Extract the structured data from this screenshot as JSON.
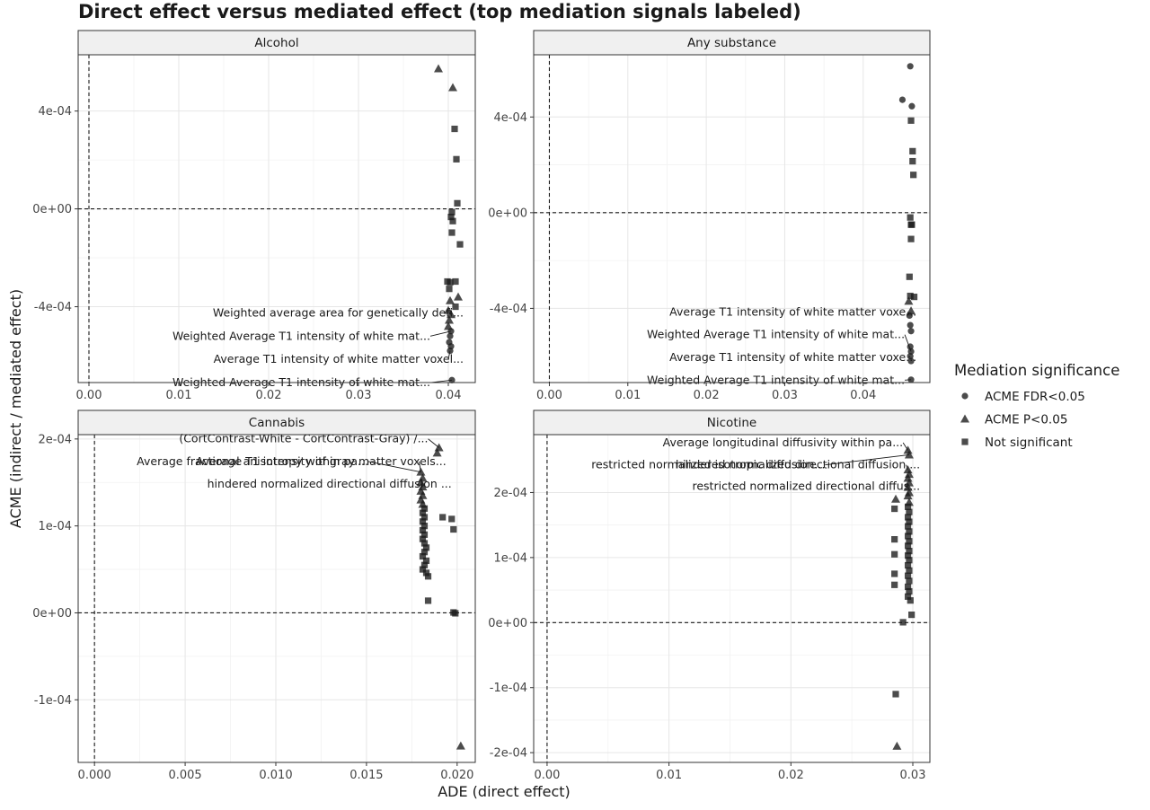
{
  "chart_data": {
    "type": "scatter",
    "title": "Direct effect versus mediated effect (top mediation signals labeled)",
    "xlabel": "ADE (direct effect)",
    "ylabel": "ACME (indirect / mediated effect)",
    "legend": {
      "title": "Mediation significance",
      "position": "right",
      "entries": [
        {
          "label": "ACME FDR<0.05",
          "shape": "circle"
        },
        {
          "label": "ACME P<0.05",
          "shape": "triangle"
        },
        {
          "label": "Not significant",
          "shape": "square"
        }
      ]
    },
    "grid": true,
    "point_color": "#1a1a1a",
    "reference_lines": {
      "x": 0,
      "y": 0,
      "style": "dashed"
    },
    "panels": [
      {
        "name": "Alcohol",
        "xlim": [
          -0.0012,
          0.043
        ],
        "ylim": [
          -0.00071,
          0.00063
        ],
        "xticks": [
          0,
          0.01,
          0.02,
          0.03,
          0.04
        ],
        "xtick_labels": [
          "0.00",
          "0.01",
          "0.02",
          "0.03",
          "0.04"
        ],
        "yticks": [
          -0.0004,
          0,
          0.0004
        ],
        "ytick_labels": [
          "-4e-04",
          "0e+00",
          "4e-04"
        ],
        "points": [
          {
            "x": 0.0389,
            "y": 0.000573,
            "sig": "triangle"
          },
          {
            "x": 0.0405,
            "y": 0.000496,
            "sig": "triangle"
          },
          {
            "x": 0.0407,
            "y": 0.000327,
            "sig": "square"
          },
          {
            "x": 0.0409,
            "y": 0.000203,
            "sig": "square"
          },
          {
            "x": 0.041,
            "y": 2.3e-05,
            "sig": "square"
          },
          {
            "x": 0.0404,
            "y": -1.3e-05,
            "sig": "square"
          },
          {
            "x": 0.0403,
            "y": -3.3e-05,
            "sig": "square"
          },
          {
            "x": 0.0405,
            "y": -5e-05,
            "sig": "square"
          },
          {
            "x": 0.0404,
            "y": -9.7e-05,
            "sig": "square"
          },
          {
            "x": 0.0413,
            "y": -0.000145,
            "sig": "square"
          },
          {
            "x": 0.0399,
            "y": -0.000297,
            "sig": "square"
          },
          {
            "x": 0.0402,
            "y": -0.0003,
            "sig": "square"
          },
          {
            "x": 0.0408,
            "y": -0.000297,
            "sig": "square"
          },
          {
            "x": 0.0401,
            "y": -0.000327,
            "sig": "square"
          },
          {
            "x": 0.0411,
            "y": -0.00036,
            "sig": "triangle"
          },
          {
            "x": 0.0402,
            "y": -0.000375,
            "sig": "triangle"
          },
          {
            "x": 0.0408,
            "y": -0.0004,
            "sig": "square"
          },
          {
            "x": 0.04,
            "y": -0.000415,
            "sig": "triangle"
          },
          {
            "x": 0.0403,
            "y": -0.000432,
            "sig": "triangle"
          },
          {
            "x": 0.0401,
            "y": -0.000455,
            "sig": "triangle"
          },
          {
            "x": 0.04,
            "y": -0.00048,
            "sig": "triangle"
          },
          {
            "x": 0.0403,
            "y": -0.0005,
            "sig": "circle"
          },
          {
            "x": 0.0402,
            "y": -0.00052,
            "sig": "circle"
          },
          {
            "x": 0.0401,
            "y": -0.000545,
            "sig": "circle"
          },
          {
            "x": 0.0403,
            "y": -0.000562,
            "sig": "circle"
          },
          {
            "x": 0.0402,
            "y": -0.00058,
            "sig": "circle"
          },
          {
            "x": 0.0404,
            "y": -0.0007,
            "sig": "circle"
          }
        ],
        "annotations": [
          {
            "text": "Weighted average area for genetically defi...",
            "x": 0.0403,
            "y": -0.000432,
            "label_y": -0.00044,
            "label_x_end": 0.0417
          },
          {
            "text": "Weighted Average T1 intensity of white mat...",
            "x": 0.0403,
            "y": -0.0005,
            "label_y": -0.000535,
            "label_x_end": 0.038
          },
          {
            "text": "Average T1 intensity of white matter voxel...",
            "x": 0.0402,
            "y": -0.00058,
            "label_y": -0.00063,
            "label_x_end": 0.0417
          },
          {
            "text": "Weighted Average T1 intensity of white mat...",
            "x": 0.0404,
            "y": -0.0007,
            "label_y": -0.000725,
            "label_x_end": 0.038
          }
        ]
      },
      {
        "name": "Any substance",
        "xlim": [
          -0.002,
          0.0485
        ],
        "ylim": [
          -0.00071,
          0.00066
        ],
        "xticks": [
          0,
          0.01,
          0.02,
          0.03,
          0.04
        ],
        "xtick_labels": [
          "0.00",
          "0.01",
          "0.02",
          "0.03",
          "0.04"
        ],
        "yticks": [
          -0.0004,
          0,
          0.0004
        ],
        "ytick_labels": [
          "-4e-04",
          "0e+00",
          "4e-04"
        ],
        "points": [
          {
            "x": 0.046,
            "y": 0.000612,
            "sig": "circle"
          },
          {
            "x": 0.045,
            "y": 0.000472,
            "sig": "circle"
          },
          {
            "x": 0.0462,
            "y": 0.000445,
            "sig": "circle"
          },
          {
            "x": 0.0461,
            "y": 0.000385,
            "sig": "square"
          },
          {
            "x": 0.0463,
            "y": 0.000257,
            "sig": "square"
          },
          {
            "x": 0.0463,
            "y": 0.000215,
            "sig": "square"
          },
          {
            "x": 0.0464,
            "y": 0.000158,
            "sig": "square"
          },
          {
            "x": 0.046,
            "y": -2e-05,
            "sig": "square"
          },
          {
            "x": 0.0461,
            "y": -5e-05,
            "sig": "square"
          },
          {
            "x": 0.0462,
            "y": -5e-05,
            "sig": "square"
          },
          {
            "x": 0.0461,
            "y": -0.00011,
            "sig": "square"
          },
          {
            "x": 0.0459,
            "y": -0.000268,
            "sig": "square"
          },
          {
            "x": 0.046,
            "y": -0.000348,
            "sig": "square"
          },
          {
            "x": 0.0465,
            "y": -0.000352,
            "sig": "square"
          },
          {
            "x": 0.0458,
            "y": -0.00037,
            "sig": "triangle"
          },
          {
            "x": 0.0461,
            "y": -0.00041,
            "sig": "triangle"
          },
          {
            "x": 0.0459,
            "y": -0.00043,
            "sig": "circle"
          },
          {
            "x": 0.046,
            "y": -0.00047,
            "sig": "circle"
          },
          {
            "x": 0.0461,
            "y": -0.000495,
            "sig": "circle"
          },
          {
            "x": 0.046,
            "y": -0.00056,
            "sig": "circle"
          },
          {
            "x": 0.0461,
            "y": -0.00058,
            "sig": "circle"
          },
          {
            "x": 0.046,
            "y": -0.0006,
            "sig": "circle"
          },
          {
            "x": 0.0461,
            "y": -0.00062,
            "sig": "circle"
          },
          {
            "x": 0.0461,
            "y": -0.000698,
            "sig": "circle"
          }
        ],
        "annotations": [
          {
            "text": "Average T1 intensity of white matter voxe...",
            "x": 0.0459,
            "y": -0.00043,
            "label_y": -0.00043,
            "label_x_end": 0.0468
          },
          {
            "text": "Weighted Average T1 intensity of white mat...",
            "x": 0.0461,
            "y": -0.00058,
            "label_y": -0.000525,
            "label_x_end": 0.0453
          },
          {
            "text": "Average T1 intensity of white matter voxe...",
            "x": 0.046,
            "y": -0.0006,
            "label_y": -0.00062,
            "label_x_end": 0.0468
          },
          {
            "text": "Weighted Average T1 intensity of white mat...",
            "x": 0.0461,
            "y": -0.000698,
            "label_y": -0.000715,
            "label_x_end": 0.0453
          }
        ]
      },
      {
        "name": "Cannabis",
        "xlim": [
          -0.0009,
          0.021
        ],
        "ylim": [
          -0.000172,
          0.000205
        ],
        "xticks": [
          0,
          0.005,
          0.01,
          0.015,
          0.02
        ],
        "xtick_labels": [
          "0.000",
          "0.005",
          "0.010",
          "0.015",
          "0.020"
        ],
        "yticks": [
          -0.0001,
          0,
          0.0001,
          0.0002
        ],
        "ytick_labels": [
          "-1e-04",
          "0e+00",
          "1e-04",
          "2e-04"
        ],
        "points": [
          {
            "x": 0.019,
            "y": 0.00019,
            "sig": "triangle"
          },
          {
            "x": 0.0189,
            "y": 0.000184,
            "sig": "triangle"
          },
          {
            "x": 0.018,
            "y": 0.000162,
            "sig": "triangle"
          },
          {
            "x": 0.0181,
            "y": 0.000155,
            "sig": "triangle"
          },
          {
            "x": 0.018,
            "y": 0.00015,
            "sig": "triangle"
          },
          {
            "x": 0.0181,
            "y": 0.000145,
            "sig": "triangle"
          },
          {
            "x": 0.018,
            "y": 0.00014,
            "sig": "triangle"
          },
          {
            "x": 0.0181,
            "y": 0.000135,
            "sig": "triangle"
          },
          {
            "x": 0.018,
            "y": 0.00013,
            "sig": "triangle"
          },
          {
            "x": 0.0181,
            "y": 0.000125,
            "sig": "triangle"
          },
          {
            "x": 0.0182,
            "y": 0.00012,
            "sig": "square"
          },
          {
            "x": 0.0181,
            "y": 0.000115,
            "sig": "square"
          },
          {
            "x": 0.0182,
            "y": 0.00011,
            "sig": "square"
          },
          {
            "x": 0.0181,
            "y": 0.000105,
            "sig": "square"
          },
          {
            "x": 0.0182,
            "y": 0.0001,
            "sig": "square"
          },
          {
            "x": 0.0181,
            "y": 9.5e-05,
            "sig": "square"
          },
          {
            "x": 0.0182,
            "y": 9e-05,
            "sig": "square"
          },
          {
            "x": 0.0181,
            "y": 8.5e-05,
            "sig": "square"
          },
          {
            "x": 0.0182,
            "y": 8e-05,
            "sig": "square"
          },
          {
            "x": 0.0183,
            "y": 7.5e-05,
            "sig": "square"
          },
          {
            "x": 0.0182,
            "y": 7e-05,
            "sig": "square"
          },
          {
            "x": 0.0181,
            "y": 6.5e-05,
            "sig": "square"
          },
          {
            "x": 0.0183,
            "y": 6e-05,
            "sig": "square"
          },
          {
            "x": 0.0182,
            "y": 5.5e-05,
            "sig": "square"
          },
          {
            "x": 0.0181,
            "y": 5e-05,
            "sig": "square"
          },
          {
            "x": 0.0183,
            "y": 4.6e-05,
            "sig": "square"
          },
          {
            "x": 0.0184,
            "y": 4.2e-05,
            "sig": "square"
          },
          {
            "x": 0.0192,
            "y": 0.00011,
            "sig": "square"
          },
          {
            "x": 0.0197,
            "y": 0.000108,
            "sig": "square"
          },
          {
            "x": 0.0198,
            "y": 9.6e-05,
            "sig": "square"
          },
          {
            "x": 0.0184,
            "y": 1.4e-05,
            "sig": "square"
          },
          {
            "x": 0.0198,
            "y": 5e-07,
            "sig": "square"
          },
          {
            "x": 0.0199,
            "y": -5e-07,
            "sig": "square"
          },
          {
            "x": 0.0202,
            "y": -0.000153,
            "sig": "triangle"
          }
        ],
        "annotations": [
          {
            "text": "(CortContrast-White - CortContrast-Gray) /...",
            "x": 0.019,
            "y": 0.00019,
            "label_y": 0.000196,
            "label_x_end": 0.0184
          },
          {
            "text": "Average fractional anisotropy within pa...",
            "x": 0.018,
            "y": 0.000162,
            "label_y": 0.00017,
            "label_x_end": 0.0151
          },
          {
            "text": "Average T1 intensity of gray matter voxels...",
            "x": 0.018,
            "y": 0.000162,
            "label_y": 0.00017,
            "label_x_end": 0.0194
          },
          {
            "text": "hindered normalized directional diffusion ...",
            "x": 0.0181,
            "y": 0.000145,
            "label_y": 0.000144,
            "label_x_end": 0.0197
          }
        ]
      },
      {
        "name": "Nicotine",
        "xlim": [
          -0.0011,
          0.0314
        ],
        "ylim": [
          -0.000215,
          0.000289
        ],
        "xticks": [
          0,
          0.01,
          0.02,
          0.03
        ],
        "xtick_labels": [
          "0.00",
          "0.01",
          "0.02",
          "0.03"
        ],
        "yticks": [
          -0.0002,
          -0.0001,
          0,
          0.0001,
          0.0002
        ],
        "ytick_labels": [
          "-2e-04",
          "-1e-04",
          "0e+00",
          "1e-04",
          "2e-04"
        ],
        "points": [
          {
            "x": 0.0296,
            "y": 0.000265,
            "sig": "triangle"
          },
          {
            "x": 0.0297,
            "y": 0.000258,
            "sig": "triangle"
          },
          {
            "x": 0.0296,
            "y": 0.000235,
            "sig": "triangle"
          },
          {
            "x": 0.0297,
            "y": 0.000228,
            "sig": "triangle"
          },
          {
            "x": 0.0296,
            "y": 0.000222,
            "sig": "triangle"
          },
          {
            "x": 0.0297,
            "y": 0.000215,
            "sig": "triangle"
          },
          {
            "x": 0.0296,
            "y": 0.000208,
            "sig": "triangle"
          },
          {
            "x": 0.0297,
            "y": 0.0002,
            "sig": "triangle"
          },
          {
            "x": 0.0296,
            "y": 0.000195,
            "sig": "triangle"
          },
          {
            "x": 0.0286,
            "y": 0.00019,
            "sig": "triangle"
          },
          {
            "x": 0.0297,
            "y": 0.000185,
            "sig": "triangle"
          },
          {
            "x": 0.0285,
            "y": 0.000175,
            "sig": "square"
          },
          {
            "x": 0.0296,
            "y": 0.000178,
            "sig": "square"
          },
          {
            "x": 0.0297,
            "y": 0.00017,
            "sig": "square"
          },
          {
            "x": 0.0296,
            "y": 0.000162,
            "sig": "square"
          },
          {
            "x": 0.0297,
            "y": 0.000155,
            "sig": "square"
          },
          {
            "x": 0.0296,
            "y": 0.000148,
            "sig": "square"
          },
          {
            "x": 0.0297,
            "y": 0.00014,
            "sig": "square"
          },
          {
            "x": 0.0296,
            "y": 0.000133,
            "sig": "square"
          },
          {
            "x": 0.0285,
            "y": 0.000128,
            "sig": "square"
          },
          {
            "x": 0.0297,
            "y": 0.000125,
            "sig": "square"
          },
          {
            "x": 0.0296,
            "y": 0.000118,
            "sig": "square"
          },
          {
            "x": 0.0297,
            "y": 0.00011,
            "sig": "square"
          },
          {
            "x": 0.0285,
            "y": 0.000105,
            "sig": "square"
          },
          {
            "x": 0.0296,
            "y": 0.000103,
            "sig": "square"
          },
          {
            "x": 0.0297,
            "y": 9.6e-05,
            "sig": "square"
          },
          {
            "x": 0.0296,
            "y": 8.8e-05,
            "sig": "square"
          },
          {
            "x": 0.0297,
            "y": 8e-05,
            "sig": "square"
          },
          {
            "x": 0.0285,
            "y": 7.5e-05,
            "sig": "square"
          },
          {
            "x": 0.0296,
            "y": 7.2e-05,
            "sig": "square"
          },
          {
            "x": 0.0297,
            "y": 6.4e-05,
            "sig": "square"
          },
          {
            "x": 0.0285,
            "y": 5.8e-05,
            "sig": "square"
          },
          {
            "x": 0.0296,
            "y": 5.5e-05,
            "sig": "square"
          },
          {
            "x": 0.0297,
            "y": 4.8e-05,
            "sig": "square"
          },
          {
            "x": 0.0296,
            "y": 4e-05,
            "sig": "square"
          },
          {
            "x": 0.0298,
            "y": 3.4e-05,
            "sig": "square"
          },
          {
            "x": 0.0299,
            "y": 1.2e-05,
            "sig": "square"
          },
          {
            "x": 0.0292,
            "y": 5e-07,
            "sig": "square"
          },
          {
            "x": 0.0286,
            "y": -0.00011,
            "sig": "square"
          },
          {
            "x": 0.0287,
            "y": -0.00019,
            "sig": "triangle"
          }
        ],
        "annotations": [
          {
            "text": "Average longitudinal diffusivity within pa...",
            "x": 0.0296,
            "y": 0.000265,
            "label_y": 0.000271,
            "label_x_end": 0.0292
          },
          {
            "text": "restricted normalized isotropic diffusion...",
            "x": 0.0297,
            "y": 0.000258,
            "label_y": 0.000237,
            "label_x_end": 0.0228
          },
          {
            "text": "hindered normalized directional diffusion ...",
            "x": 0.0296,
            "y": 0.000235,
            "label_y": 0.000237,
            "label_x_end": 0.0306
          },
          {
            "text": "restricted normalized directional diffus...",
            "x": 0.0296,
            "y": 0.000208,
            "label_y": 0.000204,
            "label_x_end": 0.0306
          }
        ]
      }
    ]
  }
}
